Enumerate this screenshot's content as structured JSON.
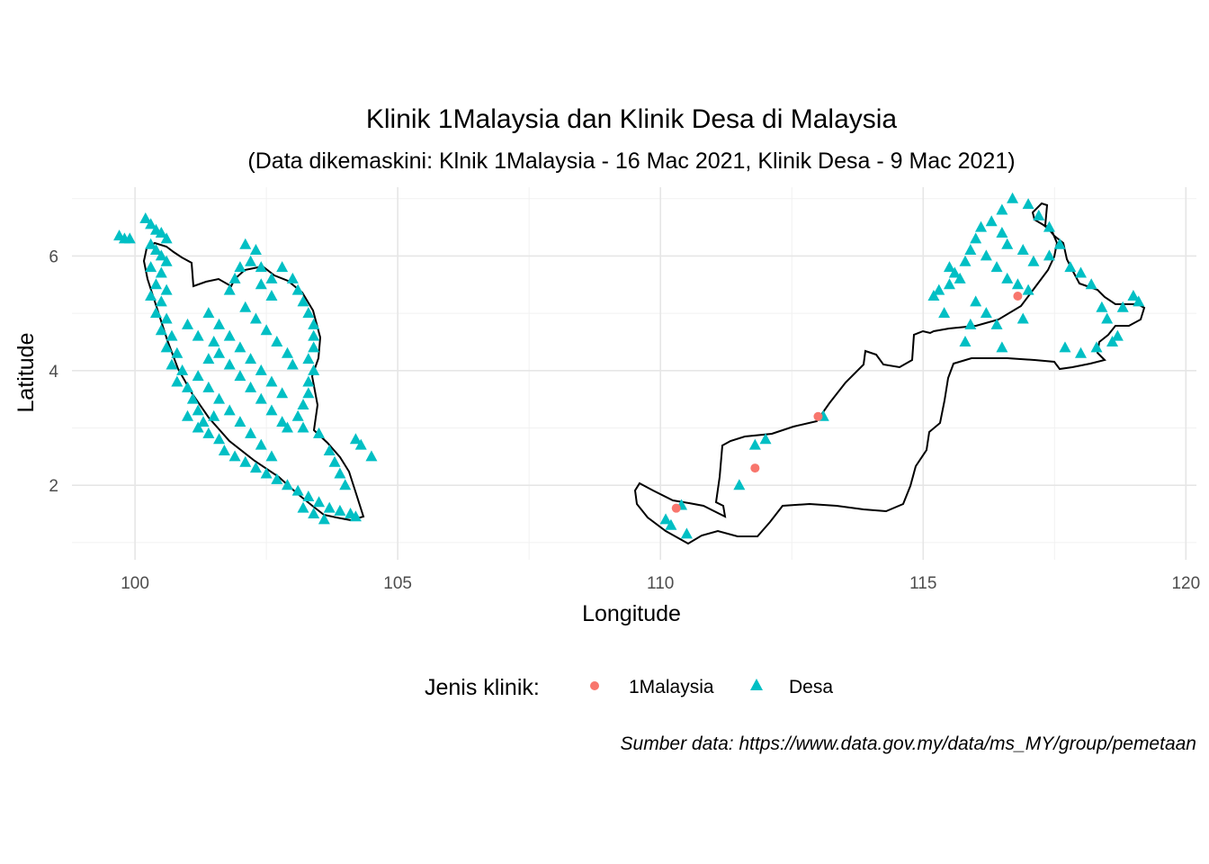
{
  "chart_data": {
    "type": "scatter",
    "title": "Klinik 1Malaysia dan Klinik Desa di Malaysia",
    "subtitle": "(Data dikemaskini: Klnik 1Malaysia - 16 Mac 2021, Klinik Desa - 9 Mac 2021)",
    "xlabel": "Longitude",
    "ylabel": "Latitude",
    "xlim": [
      98.8,
      120.2
    ],
    "ylim": [
      0.7,
      7.2
    ],
    "x_ticks": [
      100,
      105,
      110,
      115,
      120
    ],
    "y_ticks": [
      2,
      4,
      6
    ],
    "grid": true,
    "legend_title": "Jenis klinik:",
    "legend_position": "bottom",
    "caption": "Sumber data: https://www.data.gov.my/data/ms_MY/group/pemetaan",
    "series": [
      {
        "name": "1Malaysia",
        "marker": "circle",
        "color": "#F8766D",
        "points": [
          [
            110.3,
            1.6
          ],
          [
            111.8,
            2.3
          ],
          [
            113.0,
            3.2
          ],
          [
            116.8,
            5.3
          ]
        ]
      },
      {
        "name": "Desa",
        "marker": "triangle",
        "color": "#00BFC4",
        "points": [
          [
            99.7,
            6.35
          ],
          [
            99.8,
            6.3
          ],
          [
            99.9,
            6.3
          ],
          [
            100.2,
            6.65
          ],
          [
            100.3,
            6.55
          ],
          [
            100.4,
            6.45
          ],
          [
            100.5,
            6.4
          ],
          [
            100.6,
            6.3
          ],
          [
            100.3,
            6.2
          ],
          [
            100.4,
            6.1
          ],
          [
            100.5,
            6.0
          ],
          [
            100.6,
            5.9
          ],
          [
            100.3,
            5.8
          ],
          [
            100.5,
            5.7
          ],
          [
            100.4,
            5.5
          ],
          [
            100.6,
            5.4
          ],
          [
            100.3,
            5.3
          ],
          [
            100.5,
            5.2
          ],
          [
            100.4,
            5.0
          ],
          [
            100.6,
            4.9
          ],
          [
            100.5,
            4.7
          ],
          [
            100.7,
            4.6
          ],
          [
            100.6,
            4.4
          ],
          [
            100.8,
            4.3
          ],
          [
            100.7,
            4.1
          ],
          [
            100.9,
            4.0
          ],
          [
            100.8,
            3.8
          ],
          [
            101.0,
            3.7
          ],
          [
            101.1,
            3.5
          ],
          [
            101.2,
            3.3
          ],
          [
            101.3,
            3.1
          ],
          [
            101.4,
            2.9
          ],
          [
            101.6,
            2.8
          ],
          [
            101.7,
            2.6
          ],
          [
            101.9,
            2.5
          ],
          [
            102.1,
            2.4
          ],
          [
            102.3,
            2.3
          ],
          [
            102.5,
            2.2
          ],
          [
            102.7,
            2.1
          ],
          [
            102.9,
            2.0
          ],
          [
            103.1,
            1.9
          ],
          [
            103.3,
            1.8
          ],
          [
            103.5,
            1.7
          ],
          [
            103.7,
            1.6
          ],
          [
            103.9,
            1.55
          ],
          [
            104.1,
            1.5
          ],
          [
            104.2,
            1.45
          ],
          [
            103.6,
            1.4
          ],
          [
            103.4,
            1.5
          ],
          [
            103.2,
            1.6
          ],
          [
            102.1,
            6.2
          ],
          [
            102.3,
            6.1
          ],
          [
            102.2,
            5.9
          ],
          [
            102.0,
            5.8
          ],
          [
            101.9,
            5.6
          ],
          [
            101.8,
            5.4
          ],
          [
            102.4,
            5.8
          ],
          [
            102.6,
            5.6
          ],
          [
            102.8,
            5.8
          ],
          [
            103.0,
            5.6
          ],
          [
            103.1,
            5.4
          ],
          [
            103.2,
            5.2
          ],
          [
            103.3,
            5.0
          ],
          [
            103.4,
            4.8
          ],
          [
            103.4,
            4.6
          ],
          [
            103.4,
            4.4
          ],
          [
            103.3,
            4.2
          ],
          [
            103.4,
            4.0
          ],
          [
            103.3,
            3.8
          ],
          [
            103.3,
            3.6
          ],
          [
            103.2,
            3.4
          ],
          [
            103.1,
            3.2
          ],
          [
            102.9,
            3.0
          ],
          [
            103.2,
            3.0
          ],
          [
            103.5,
            2.9
          ],
          [
            103.7,
            2.6
          ],
          [
            103.8,
            2.4
          ],
          [
            103.9,
            2.2
          ],
          [
            104.0,
            2.0
          ],
          [
            104.2,
            2.8
          ],
          [
            104.3,
            2.7
          ],
          [
            104.5,
            2.5
          ],
          [
            101.5,
            4.5
          ],
          [
            101.6,
            4.3
          ],
          [
            101.8,
            4.1
          ],
          [
            102.0,
            3.9
          ],
          [
            102.2,
            3.7
          ],
          [
            102.4,
            3.5
          ],
          [
            102.6,
            3.3
          ],
          [
            102.8,
            3.1
          ],
          [
            101.4,
            5.0
          ],
          [
            101.6,
            4.8
          ],
          [
            101.8,
            4.6
          ],
          [
            102.0,
            4.4
          ],
          [
            102.2,
            4.2
          ],
          [
            102.4,
            4.0
          ],
          [
            102.6,
            3.8
          ],
          [
            102.8,
            3.6
          ],
          [
            101.2,
            3.9
          ],
          [
            101.4,
            3.7
          ],
          [
            101.6,
            3.5
          ],
          [
            101.8,
            3.3
          ],
          [
            102.0,
            3.1
          ],
          [
            102.2,
            2.9
          ],
          [
            102.4,
            2.7
          ],
          [
            102.6,
            2.5
          ],
          [
            101.0,
            4.8
          ],
          [
            101.2,
            4.6
          ],
          [
            101.4,
            4.2
          ],
          [
            101.0,
            3.2
          ],
          [
            101.2,
            3.0
          ],
          [
            101.5,
            3.2
          ],
          [
            102.1,
            5.1
          ],
          [
            102.3,
            4.9
          ],
          [
            102.5,
            4.7
          ],
          [
            102.7,
            4.5
          ],
          [
            102.9,
            4.3
          ],
          [
            103.0,
            4.1
          ],
          [
            102.6,
            5.3
          ],
          [
            102.4,
            5.5
          ],
          [
            110.1,
            1.4
          ],
          [
            110.2,
            1.3
          ],
          [
            110.4,
            1.65
          ],
          [
            110.5,
            1.15
          ],
          [
            111.5,
            2.0
          ],
          [
            111.8,
            2.7
          ],
          [
            112.0,
            2.8
          ],
          [
            113.1,
            3.2
          ],
          [
            115.2,
            5.3
          ],
          [
            115.3,
            5.4
          ],
          [
            115.5,
            5.5
          ],
          [
            115.6,
            5.7
          ],
          [
            115.8,
            5.9
          ],
          [
            115.9,
            6.1
          ],
          [
            116.0,
            6.3
          ],
          [
            116.1,
            6.5
          ],
          [
            116.3,
            6.6
          ],
          [
            116.5,
            6.8
          ],
          [
            116.7,
            7.0
          ],
          [
            117.0,
            6.9
          ],
          [
            117.2,
            6.7
          ],
          [
            117.4,
            6.5
          ],
          [
            116.2,
            6.0
          ],
          [
            116.4,
            5.8
          ],
          [
            116.6,
            5.6
          ],
          [
            116.8,
            5.5
          ],
          [
            117.0,
            5.4
          ],
          [
            116.0,
            5.2
          ],
          [
            116.2,
            5.0
          ],
          [
            116.4,
            4.8
          ],
          [
            116.9,
            4.9
          ],
          [
            117.4,
            6.0
          ],
          [
            117.6,
            6.2
          ],
          [
            117.8,
            5.8
          ],
          [
            118.0,
            5.7
          ],
          [
            118.2,
            5.5
          ],
          [
            118.4,
            5.1
          ],
          [
            118.5,
            4.9
          ],
          [
            118.7,
            4.6
          ],
          [
            118.6,
            4.5
          ],
          [
            118.3,
            4.4
          ],
          [
            118.0,
            4.3
          ],
          [
            117.7,
            4.4
          ],
          [
            116.5,
            4.4
          ],
          [
            115.8,
            4.5
          ],
          [
            115.9,
            4.8
          ],
          [
            115.4,
            5.0
          ],
          [
            119.0,
            5.3
          ],
          [
            119.1,
            5.2
          ],
          [
            118.8,
            5.1
          ],
          [
            115.7,
            5.6
          ],
          [
            115.5,
            5.8
          ],
          [
            116.6,
            6.2
          ],
          [
            116.9,
            6.1
          ],
          [
            117.1,
            5.9
          ],
          [
            116.5,
            6.4
          ]
        ]
      }
    ]
  }
}
